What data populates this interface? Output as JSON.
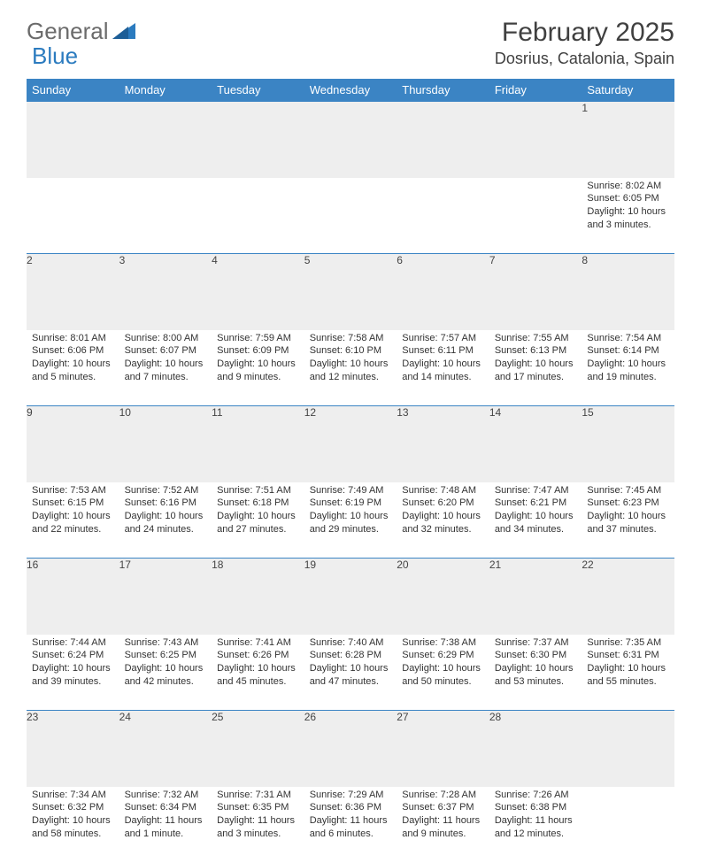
{
  "brand": {
    "part1": "General",
    "part2": "Blue"
  },
  "title": "February 2025",
  "location": "Dosrius, Catalonia, Spain",
  "colors": {
    "header_bg": "#3b84c4",
    "header_text": "#ffffff",
    "row_border": "#3b84c4",
    "daynum_bg": "#eeeeee",
    "text": "#333333",
    "brand_gray": "#6b6b6b",
    "brand_blue": "#2b7bbf"
  },
  "dayHeaders": [
    "Sunday",
    "Monday",
    "Tuesday",
    "Wednesday",
    "Thursday",
    "Friday",
    "Saturday"
  ],
  "weeks": [
    [
      {
        "n": "",
        "lines": []
      },
      {
        "n": "",
        "lines": []
      },
      {
        "n": "",
        "lines": []
      },
      {
        "n": "",
        "lines": []
      },
      {
        "n": "",
        "lines": []
      },
      {
        "n": "",
        "lines": []
      },
      {
        "n": "1",
        "lines": [
          "Sunrise: 8:02 AM",
          "Sunset: 6:05 PM",
          "Daylight: 10 hours and 3 minutes."
        ]
      }
    ],
    [
      {
        "n": "2",
        "lines": [
          "Sunrise: 8:01 AM",
          "Sunset: 6:06 PM",
          "Daylight: 10 hours and 5 minutes."
        ]
      },
      {
        "n": "3",
        "lines": [
          "Sunrise: 8:00 AM",
          "Sunset: 6:07 PM",
          "Daylight: 10 hours and 7 minutes."
        ]
      },
      {
        "n": "4",
        "lines": [
          "Sunrise: 7:59 AM",
          "Sunset: 6:09 PM",
          "Daylight: 10 hours and 9 minutes."
        ]
      },
      {
        "n": "5",
        "lines": [
          "Sunrise: 7:58 AM",
          "Sunset: 6:10 PM",
          "Daylight: 10 hours and 12 minutes."
        ]
      },
      {
        "n": "6",
        "lines": [
          "Sunrise: 7:57 AM",
          "Sunset: 6:11 PM",
          "Daylight: 10 hours and 14 minutes."
        ]
      },
      {
        "n": "7",
        "lines": [
          "Sunrise: 7:55 AM",
          "Sunset: 6:13 PM",
          "Daylight: 10 hours and 17 minutes."
        ]
      },
      {
        "n": "8",
        "lines": [
          "Sunrise: 7:54 AM",
          "Sunset: 6:14 PM",
          "Daylight: 10 hours and 19 minutes."
        ]
      }
    ],
    [
      {
        "n": "9",
        "lines": [
          "Sunrise: 7:53 AM",
          "Sunset: 6:15 PM",
          "Daylight: 10 hours and 22 minutes."
        ]
      },
      {
        "n": "10",
        "lines": [
          "Sunrise: 7:52 AM",
          "Sunset: 6:16 PM",
          "Daylight: 10 hours and 24 minutes."
        ]
      },
      {
        "n": "11",
        "lines": [
          "Sunrise: 7:51 AM",
          "Sunset: 6:18 PM",
          "Daylight: 10 hours and 27 minutes."
        ]
      },
      {
        "n": "12",
        "lines": [
          "Sunrise: 7:49 AM",
          "Sunset: 6:19 PM",
          "Daylight: 10 hours and 29 minutes."
        ]
      },
      {
        "n": "13",
        "lines": [
          "Sunrise: 7:48 AM",
          "Sunset: 6:20 PM",
          "Daylight: 10 hours and 32 minutes."
        ]
      },
      {
        "n": "14",
        "lines": [
          "Sunrise: 7:47 AM",
          "Sunset: 6:21 PM",
          "Daylight: 10 hours and 34 minutes."
        ]
      },
      {
        "n": "15",
        "lines": [
          "Sunrise: 7:45 AM",
          "Sunset: 6:23 PM",
          "Daylight: 10 hours and 37 minutes."
        ]
      }
    ],
    [
      {
        "n": "16",
        "lines": [
          "Sunrise: 7:44 AM",
          "Sunset: 6:24 PM",
          "Daylight: 10 hours and 39 minutes."
        ]
      },
      {
        "n": "17",
        "lines": [
          "Sunrise: 7:43 AM",
          "Sunset: 6:25 PM",
          "Daylight: 10 hours and 42 minutes."
        ]
      },
      {
        "n": "18",
        "lines": [
          "Sunrise: 7:41 AM",
          "Sunset: 6:26 PM",
          "Daylight: 10 hours and 45 minutes."
        ]
      },
      {
        "n": "19",
        "lines": [
          "Sunrise: 7:40 AM",
          "Sunset: 6:28 PM",
          "Daylight: 10 hours and 47 minutes."
        ]
      },
      {
        "n": "20",
        "lines": [
          "Sunrise: 7:38 AM",
          "Sunset: 6:29 PM",
          "Daylight: 10 hours and 50 minutes."
        ]
      },
      {
        "n": "21",
        "lines": [
          "Sunrise: 7:37 AM",
          "Sunset: 6:30 PM",
          "Daylight: 10 hours and 53 minutes."
        ]
      },
      {
        "n": "22",
        "lines": [
          "Sunrise: 7:35 AM",
          "Sunset: 6:31 PM",
          "Daylight: 10 hours and 55 minutes."
        ]
      }
    ],
    [
      {
        "n": "23",
        "lines": [
          "Sunrise: 7:34 AM",
          "Sunset: 6:32 PM",
          "Daylight: 10 hours and 58 minutes."
        ]
      },
      {
        "n": "24",
        "lines": [
          "Sunrise: 7:32 AM",
          "Sunset: 6:34 PM",
          "Daylight: 11 hours and 1 minute."
        ]
      },
      {
        "n": "25",
        "lines": [
          "Sunrise: 7:31 AM",
          "Sunset: 6:35 PM",
          "Daylight: 11 hours and 3 minutes."
        ]
      },
      {
        "n": "26",
        "lines": [
          "Sunrise: 7:29 AM",
          "Sunset: 6:36 PM",
          "Daylight: 11 hours and 6 minutes."
        ]
      },
      {
        "n": "27",
        "lines": [
          "Sunrise: 7:28 AM",
          "Sunset: 6:37 PM",
          "Daylight: 11 hours and 9 minutes."
        ]
      },
      {
        "n": "28",
        "lines": [
          "Sunrise: 7:26 AM",
          "Sunset: 6:38 PM",
          "Daylight: 11 hours and 12 minutes."
        ]
      },
      {
        "n": "",
        "lines": []
      }
    ]
  ]
}
